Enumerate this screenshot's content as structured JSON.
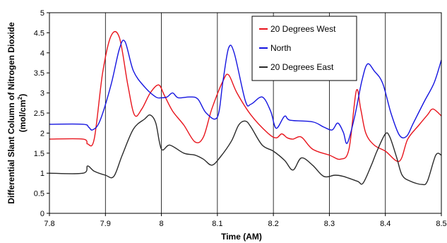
{
  "chart_data": {
    "type": "line",
    "title": "",
    "xlabel": "Time (AM)",
    "ylabel_line1": "Differential Slant Column of Nitrogen Dioxide",
    "ylabel_line2_prefix": "(mol/cm",
    "ylabel_line2_sup": "2",
    "ylabel_line2_suffix": ")",
    "xlim": [
      7.8,
      8.5
    ],
    "ylim": [
      0,
      5
    ],
    "x_ticks": [
      7.8,
      7.9,
      8.0,
      8.1,
      8.2,
      8.3,
      8.4,
      8.5
    ],
    "x_tick_labels": [
      "7.8",
      "7.9",
      "8",
      "8.1",
      "8.2",
      "8.3",
      "8.4",
      "8.5"
    ],
    "y_ticks": [
      0,
      0.5,
      1,
      1.5,
      2,
      2.5,
      3,
      3.5,
      4,
      4.5,
      5
    ],
    "y_tick_labels": [
      "0",
      "0.5",
      "1",
      "1.5",
      "2",
      "2.5",
      "3",
      "3.5",
      "4",
      "4.5",
      "5"
    ],
    "grid": "vertical",
    "legend_position": "top-right",
    "series": [
      {
        "name": "20 Degrees West",
        "color": "#e8141c",
        "points": [
          [
            7.8,
            1.85
          ],
          [
            7.86,
            1.85
          ],
          [
            7.868,
            1.73
          ],
          [
            7.88,
            1.85
          ],
          [
            7.895,
            3.5
          ],
          [
            7.91,
            4.42
          ],
          [
            7.925,
            4.38
          ],
          [
            7.94,
            3.2
          ],
          [
            7.952,
            2.45
          ],
          [
            7.965,
            2.6
          ],
          [
            7.98,
            3.0
          ],
          [
            7.995,
            3.2
          ],
          [
            8.005,
            2.95
          ],
          [
            8.02,
            2.55
          ],
          [
            8.04,
            2.2
          ],
          [
            8.06,
            1.78
          ],
          [
            8.075,
            1.9
          ],
          [
            8.09,
            2.6
          ],
          [
            8.11,
            3.3
          ],
          [
            8.12,
            3.45
          ],
          [
            8.135,
            3.0
          ],
          [
            8.16,
            2.45
          ],
          [
            8.19,
            2.0
          ],
          [
            8.205,
            1.88
          ],
          [
            8.215,
            1.98
          ],
          [
            8.225,
            1.88
          ],
          [
            8.235,
            1.85
          ],
          [
            8.25,
            1.9
          ],
          [
            8.27,
            1.6
          ],
          [
            8.3,
            1.45
          ],
          [
            8.32,
            1.35
          ],
          [
            8.335,
            1.6
          ],
          [
            8.348,
            3.05
          ],
          [
            8.356,
            2.6
          ],
          [
            8.365,
            2.0
          ],
          [
            8.38,
            1.7
          ],
          [
            8.4,
            1.55
          ],
          [
            8.425,
            1.3
          ],
          [
            8.44,
            1.85
          ],
          [
            8.46,
            2.2
          ],
          [
            8.475,
            2.45
          ],
          [
            8.485,
            2.6
          ],
          [
            8.5,
            2.43
          ]
        ]
      },
      {
        "name": "North",
        "color": "#1414e0",
        "points": [
          [
            7.8,
            2.22
          ],
          [
            7.86,
            2.22
          ],
          [
            7.87,
            2.15
          ],
          [
            7.877,
            2.08
          ],
          [
            7.89,
            2.3
          ],
          [
            7.91,
            3.2
          ],
          [
            7.925,
            4.1
          ],
          [
            7.935,
            4.28
          ],
          [
            7.95,
            3.55
          ],
          [
            7.97,
            3.15
          ],
          [
            7.99,
            2.9
          ],
          [
            8.0,
            2.88
          ],
          [
            8.01,
            2.9
          ],
          [
            8.02,
            3.0
          ],
          [
            8.03,
            2.88
          ],
          [
            8.05,
            2.9
          ],
          [
            8.065,
            2.85
          ],
          [
            8.08,
            2.5
          ],
          [
            8.1,
            2.4
          ],
          [
            8.11,
            3.3
          ],
          [
            8.12,
            4.12
          ],
          [
            8.13,
            4.0
          ],
          [
            8.15,
            2.8
          ],
          [
            8.16,
            2.72
          ],
          [
            8.18,
            2.9
          ],
          [
            8.195,
            2.55
          ],
          [
            8.205,
            2.12
          ],
          [
            8.22,
            2.42
          ],
          [
            8.23,
            2.32
          ],
          [
            8.27,
            2.28
          ],
          [
            8.29,
            2.15
          ],
          [
            8.305,
            2.08
          ],
          [
            8.315,
            2.25
          ],
          [
            8.325,
            2.02
          ],
          [
            8.332,
            1.75
          ],
          [
            8.345,
            2.4
          ],
          [
            8.358,
            3.3
          ],
          [
            8.368,
            3.72
          ],
          [
            8.38,
            3.55
          ],
          [
            8.395,
            3.25
          ],
          [
            8.41,
            2.5
          ],
          [
            8.425,
            1.95
          ],
          [
            8.438,
            1.92
          ],
          [
            8.45,
            2.25
          ],
          [
            8.47,
            2.8
          ],
          [
            8.487,
            3.25
          ],
          [
            8.5,
            3.82
          ]
        ]
      },
      {
        "name": "20 Degrees East",
        "color": "#2a2a2a",
        "points": [
          [
            7.8,
            1.0
          ],
          [
            7.86,
            1.0
          ],
          [
            7.868,
            1.18
          ],
          [
            7.88,
            1.05
          ],
          [
            7.9,
            0.95
          ],
          [
            7.915,
            0.92
          ],
          [
            7.93,
            1.45
          ],
          [
            7.95,
            2.1
          ],
          [
            7.97,
            2.35
          ],
          [
            7.98,
            2.45
          ],
          [
            7.99,
            2.25
          ],
          [
            8.0,
            1.6
          ],
          [
            8.015,
            1.7
          ],
          [
            8.04,
            1.5
          ],
          [
            8.06,
            1.45
          ],
          [
            8.075,
            1.35
          ],
          [
            8.09,
            1.2
          ],
          [
            8.105,
            1.4
          ],
          [
            8.125,
            1.8
          ],
          [
            8.138,
            2.2
          ],
          [
            8.15,
            2.3
          ],
          [
            8.16,
            2.15
          ],
          [
            8.18,
            1.7
          ],
          [
            8.2,
            1.55
          ],
          [
            8.22,
            1.32
          ],
          [
            8.235,
            1.08
          ],
          [
            8.25,
            1.38
          ],
          [
            8.27,
            1.2
          ],
          [
            8.29,
            0.92
          ],
          [
            8.31,
            0.95
          ],
          [
            8.325,
            0.92
          ],
          [
            8.35,
            0.8
          ],
          [
            8.36,
            0.75
          ],
          [
            8.375,
            1.2
          ],
          [
            8.385,
            1.55
          ],
          [
            8.4,
            1.98
          ],
          [
            8.408,
            1.9
          ],
          [
            8.42,
            1.4
          ],
          [
            8.43,
            0.95
          ],
          [
            8.445,
            0.8
          ],
          [
            8.465,
            0.72
          ],
          [
            8.475,
            0.8
          ],
          [
            8.49,
            1.45
          ],
          [
            8.5,
            1.45
          ]
        ]
      }
    ]
  }
}
